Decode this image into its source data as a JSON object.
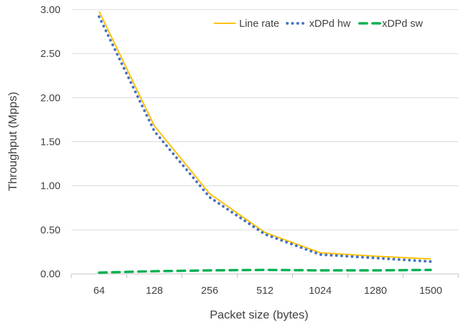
{
  "chart_data": {
    "type": "line",
    "title": "",
    "xlabel": "Packet size (bytes)",
    "ylabel": "Throughput (Mpps)",
    "categories": [
      "64",
      "128",
      "256",
      "512",
      "1024",
      "1280",
      "1500"
    ],
    "ylim": [
      0,
      3
    ],
    "yticks": [
      "0.00",
      "0.50",
      "1.00",
      "1.50",
      "2.00",
      "2.50",
      "3.00"
    ],
    "grid": true,
    "legend_position": "top-right",
    "series": [
      {
        "name": "Line rate",
        "values": [
          2.98,
          1.68,
          0.91,
          0.47,
          0.24,
          0.2,
          0.17
        ],
        "color": "#FFC000",
        "style": "solid"
      },
      {
        "name": "xDPd hw",
        "values": [
          2.92,
          1.62,
          0.87,
          0.45,
          0.22,
          0.18,
          0.14
        ],
        "color": "#4472C4",
        "style": "dotted"
      },
      {
        "name": "xDPd sw",
        "values": [
          0.015,
          0.03,
          0.04,
          0.045,
          0.04,
          0.04,
          0.045
        ],
        "color": "#00B050",
        "style": "dashed"
      }
    ]
  }
}
